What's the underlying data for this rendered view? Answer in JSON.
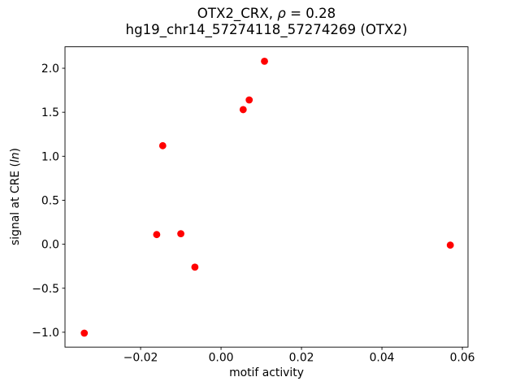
{
  "chart_data": {
    "type": "scatter",
    "title": "OTX2_CRX, ρ = 0.28",
    "title_parts": [
      {
        "text": "OTX2_CRX, ",
        "italic": false
      },
      {
        "text": "ρ",
        "italic": true
      },
      {
        "text": " = 0.28",
        "italic": false
      }
    ],
    "subtitle": "hg19_chr14_57274118_57274269 (OTX2)",
    "xlabel": "motif activity",
    "ylabel": "signal at CRE (ln)",
    "ylabel_parts": [
      {
        "text": "signal at CRE (",
        "italic": false
      },
      {
        "text": "ln",
        "italic": true
      },
      {
        "text": ")",
        "italic": false
      }
    ],
    "marker_color": "#ff0000",
    "marker_shape": "circle",
    "axis_color": "#000000",
    "text_color": "#000000",
    "background_color": "#ffffff",
    "grid": false,
    "xlim": [
      -0.0388,
      0.0614
    ],
    "ylim": [
      -1.169,
      2.244
    ],
    "xticks": [
      {
        "value": -0.02,
        "label": "−0.02"
      },
      {
        "value": 0.0,
        "label": "0.00"
      },
      {
        "value": 0.02,
        "label": "0.02"
      },
      {
        "value": 0.04,
        "label": "0.04"
      },
      {
        "value": 0.06,
        "label": "0.06"
      }
    ],
    "yticks": [
      {
        "value": 2.0,
        "label": "2.0"
      },
      {
        "value": 1.5,
        "label": "1.5"
      },
      {
        "value": 1.0,
        "label": "1.0"
      },
      {
        "value": 0.5,
        "label": "0.5"
      },
      {
        "value": 0.0,
        "label": "0.0"
      },
      {
        "value": -0.5,
        "label": "−0.5"
      },
      {
        "value": -1.0,
        "label": "−1.0"
      }
    ],
    "points": [
      {
        "x": 0.0108,
        "y": 2.08
      },
      {
        "x": 0.007,
        "y": 1.64
      },
      {
        "x": 0.0055,
        "y": 1.53
      },
      {
        "x": -0.0145,
        "y": 1.12
      },
      {
        "x": -0.016,
        "y": 0.11
      },
      {
        "x": -0.01,
        "y": 0.12
      },
      {
        "x": -0.0065,
        "y": -0.26
      },
      {
        "x": 0.057,
        "y": -0.01
      },
      {
        "x": -0.034,
        "y": -1.01
      }
    ]
  }
}
